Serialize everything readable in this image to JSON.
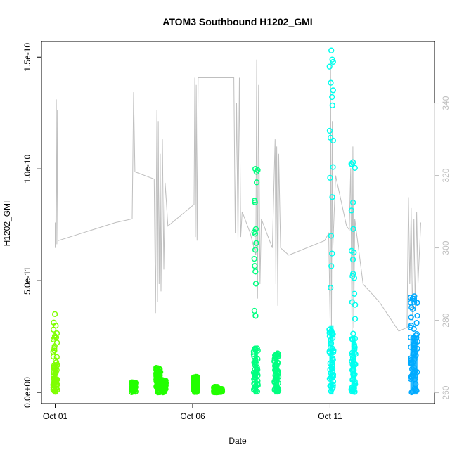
{
  "chart_data": {
    "type": "scatter",
    "title": "ATOM3 Southbound H1202_GMI",
    "xlabel": "Date",
    "ylabel": "H1202_GMI",
    "x_ticks": [
      "Oct 01",
      "Oct 06",
      "Oct 11"
    ],
    "y_ticks": [
      "0.0e+00",
      "5.0e-11",
      "1.0e-10",
      "1.5e-10"
    ],
    "y_tick_values": [
      0,
      5e-11,
      1e-10,
      1.5e-10
    ],
    "y2_ticks": [
      "260",
      "280",
      "300",
      "320",
      "340"
    ],
    "y2_tick_values": [
      260,
      280,
      300,
      320,
      340
    ],
    "xlim_days": [
      0.5,
      14.8
    ],
    "ylim": [
      -5e-12,
      1.57e-10
    ],
    "y2lim": [
      257,
      357
    ],
    "grid": false,
    "colors": {
      "secondary_line": "#bfbfbf",
      "axes": "#000000",
      "right_axis": "#bfbfbf"
    },
    "series": [
      {
        "role": "secondary_axis_line",
        "color": "#bfbfbf",
        "points": [
          [
            1.0,
            300
          ],
          [
            1.0,
            307
          ],
          [
            1.02,
            300
          ],
          [
            1.04,
            341
          ],
          [
            1.06,
            301
          ],
          [
            1.08,
            338
          ],
          [
            1.1,
            302
          ],
          [
            3.2,
            307
          ],
          [
            3.8,
            308
          ],
          [
            3.85,
            343
          ],
          [
            3.9,
            321
          ],
          [
            4.6,
            319
          ],
          [
            4.65,
            282
          ],
          [
            4.7,
            338
          ],
          [
            4.72,
            285
          ],
          [
            4.75,
            335
          ],
          [
            4.78,
            290
          ],
          [
            4.82,
            326
          ],
          [
            4.85,
            288
          ],
          [
            4.9,
            330
          ],
          [
            4.95,
            294
          ],
          [
            5.0,
            318
          ],
          [
            5.1,
            306
          ],
          [
            6.05,
            312
          ],
          [
            6.08,
            347
          ],
          [
            6.1,
            303
          ],
          [
            6.13,
            345
          ],
          [
            6.16,
            302
          ],
          [
            6.2,
            347
          ],
          [
            6.3,
            347
          ],
          [
            7.5,
            347
          ],
          [
            7.55,
            304
          ],
          [
            7.6,
            340
          ],
          [
            7.65,
            302
          ],
          [
            7.7,
            347
          ],
          [
            7.75,
            303
          ],
          [
            7.8,
            310
          ],
          [
            8.1,
            304
          ],
          [
            8.3,
            298
          ],
          [
            8.33,
            352
          ],
          [
            8.36,
            286
          ],
          [
            8.4,
            345
          ],
          [
            8.45,
            290
          ],
          [
            8.5,
            308
          ],
          [
            8.9,
            300
          ],
          [
            9.0,
            330
          ],
          [
            9.03,
            290
          ],
          [
            9.06,
            328
          ],
          [
            9.1,
            284
          ],
          [
            9.13,
            326
          ],
          [
            9.2,
            300
          ],
          [
            9.5,
            298
          ],
          [
            10.8,
            302
          ],
          [
            10.95,
            304
          ],
          [
            11.0,
            280
          ],
          [
            11.02,
            352
          ],
          [
            11.05,
            276
          ],
          [
            11.08,
            335
          ],
          [
            11.1,
            300
          ],
          [
            11.2,
            320
          ],
          [
            11.6,
            306
          ],
          [
            11.7,
            305
          ],
          [
            11.75,
            322
          ],
          [
            11.8,
            275
          ],
          [
            11.83,
            328
          ],
          [
            11.86,
            278
          ],
          [
            11.9,
            308
          ],
          [
            12.2,
            290
          ],
          [
            12.8,
            285
          ],
          [
            13.5,
            277
          ],
          [
            13.8,
            278
          ],
          [
            13.85,
            314
          ],
          [
            13.9,
            290
          ],
          [
            13.95,
            311
          ],
          [
            14.0,
            280
          ],
          [
            14.05,
            308
          ],
          [
            14.1,
            283
          ],
          [
            14.15,
            310
          ],
          [
            14.2,
            290
          ],
          [
            14.3,
            307
          ]
        ]
      },
      {
        "role": "points",
        "color": "#7fff00",
        "clusters": [
          {
            "day": 1.0,
            "spread": 0.04,
            "max": 3.5e-11,
            "dense": 1.3e-11
          }
        ]
      },
      {
        "role": "points",
        "color": "#22ff00",
        "clusters": [
          {
            "day": 3.85,
            "spread": 0.03,
            "max": 4.5e-12,
            "dense": 4e-12
          },
          {
            "day": 4.75,
            "spread": 0.04,
            "max": 1.1e-11,
            "dense": 8e-12
          },
          {
            "day": 4.95,
            "spread": 0.03,
            "max": 5.5e-12,
            "dense": 5e-12
          },
          {
            "day": 6.1,
            "spread": 0.04,
            "max": 7e-12,
            "dense": 6e-12
          },
          {
            "day": 6.85,
            "spread": 0.04,
            "max": 2.5e-12,
            "dense": 2e-12
          },
          {
            "day": 7.0,
            "spread": 0.03,
            "max": 1.5e-12,
            "dense": 1.5e-12
          }
        ]
      },
      {
        "role": "points",
        "color": "#00ff80",
        "clusters": [
          {
            "day": 8.3,
            "spread": 0.05,
            "max": 1e-10,
            "dense": 2e-11
          },
          {
            "day": 9.05,
            "spread": 0.05,
            "max": 1.75e-11,
            "dense": 1.2e-11
          }
        ]
      },
      {
        "role": "points",
        "color": "#00ffee",
        "clusters": [
          {
            "day": 11.05,
            "spread": 0.06,
            "max": 1.53e-10,
            "dense": 3e-11
          },
          {
            "day": 11.85,
            "spread": 0.07,
            "max": 1.03e-10,
            "dense": 2.5e-11
          }
        ]
      },
      {
        "role": "points",
        "color": "#00aaff",
        "clusters": [
          {
            "day": 14.05,
            "spread": 0.13,
            "max": 4.3e-11,
            "dense": 2.5e-11
          }
        ]
      }
    ]
  }
}
